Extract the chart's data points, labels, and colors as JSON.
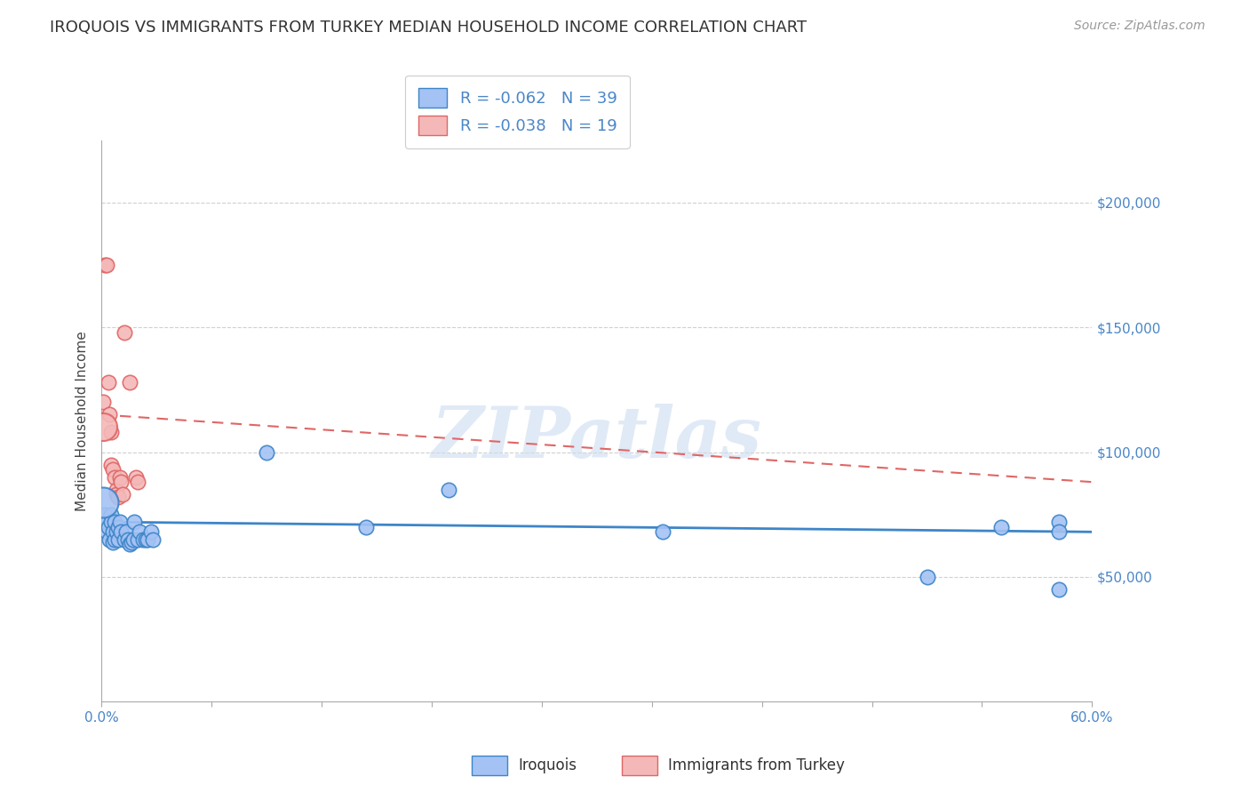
{
  "title": "IROQUOIS VS IMMIGRANTS FROM TURKEY MEDIAN HOUSEHOLD INCOME CORRELATION CHART",
  "source": "Source: ZipAtlas.com",
  "ylabel": "Median Household Income",
  "watermark": "ZIPatlas",
  "legend_label1": "R = -0.062   N = 39",
  "legend_label2": "R = -0.038   N = 19",
  "bottom_label1": "Iroquois",
  "bottom_label2": "Immigrants from Turkey",
  "color_blue": "#a4c2f4",
  "color_pink": "#f4b8b8",
  "color_blue_line": "#3d85c8",
  "color_pink_line": "#cc4444",
  "color_blue_dark": "#4a86c8",
  "color_pink_dark": "#e06666",
  "ytick_labels": [
    "$50,000",
    "$100,000",
    "$150,000",
    "$200,000"
  ],
  "ytick_values": [
    50000,
    100000,
    150000,
    200000
  ],
  "ylim": [
    0,
    225000
  ],
  "xlim": [
    0.0,
    0.6
  ],
  "blue_x": [
    0.002,
    0.003,
    0.003,
    0.004,
    0.005,
    0.006,
    0.006,
    0.007,
    0.007,
    0.008,
    0.008,
    0.009,
    0.01,
    0.01,
    0.011,
    0.012,
    0.014,
    0.015,
    0.016,
    0.017,
    0.018,
    0.019,
    0.02,
    0.022,
    0.023,
    0.025,
    0.027,
    0.028,
    0.03,
    0.031,
    0.1,
    0.16,
    0.21,
    0.34,
    0.5,
    0.545,
    0.58,
    0.58,
    0.58
  ],
  "blue_y": [
    75000,
    68000,
    72000,
    70000,
    65000,
    75000,
    72000,
    68000,
    64000,
    72000,
    65000,
    68000,
    70000,
    65000,
    72000,
    68000,
    65000,
    68000,
    65000,
    63000,
    64000,
    65000,
    72000,
    65000,
    68000,
    65000,
    65000,
    65000,
    68000,
    65000,
    100000,
    70000,
    85000,
    68000,
    50000,
    70000,
    72000,
    68000,
    45000
  ],
  "pink_x": [
    0.001,
    0.002,
    0.003,
    0.004,
    0.005,
    0.006,
    0.006,
    0.007,
    0.008,
    0.009,
    0.009,
    0.01,
    0.011,
    0.012,
    0.013,
    0.014,
    0.017,
    0.021,
    0.022
  ],
  "pink_y": [
    120000,
    175000,
    175000,
    128000,
    115000,
    108000,
    95000,
    93000,
    90000,
    85000,
    83000,
    82000,
    90000,
    88000,
    83000,
    148000,
    128000,
    90000,
    88000
  ],
  "blue_trend_x": [
    0.0,
    0.6
  ],
  "blue_trend_y": [
    72000,
    68000
  ],
  "pink_trend_x": [
    0.0,
    0.6
  ],
  "pink_trend_y": [
    115000,
    88000
  ],
  "marker_size": 140,
  "title_fontsize": 13,
  "source_fontsize": 10,
  "tick_fontsize": 11,
  "ylabel_fontsize": 11
}
